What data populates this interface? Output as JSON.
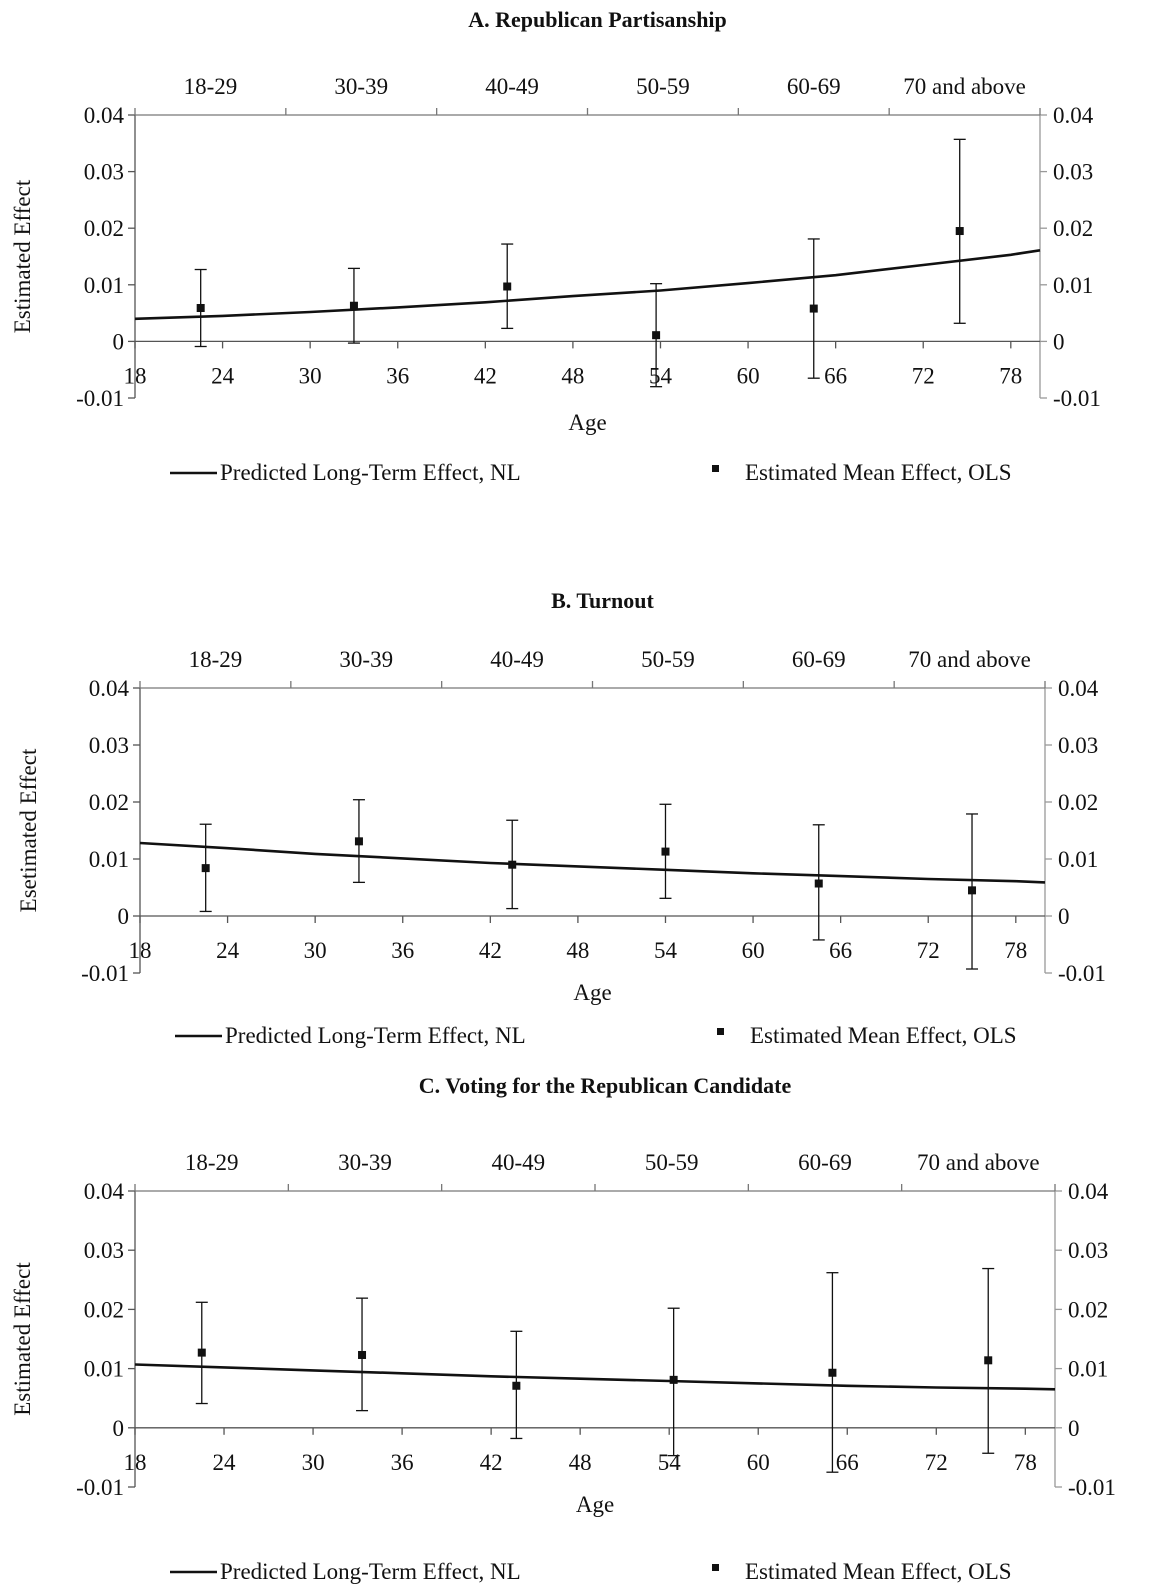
{
  "chart_data": [
    {
      "type": "line",
      "title": "A. Republican Partisanship",
      "ylabel": "Estimated Effect",
      "xlabel": "Age",
      "ylim": [
        -0.01,
        0.04
      ],
      "yticks": [
        "-0.01",
        "0",
        "0.01",
        "0.02",
        "0.03",
        "0.04"
      ],
      "xlim": [
        18,
        80
      ],
      "xticks": [
        "18",
        "24",
        "30",
        "36",
        "42",
        "48",
        "54",
        "60",
        "66",
        "72",
        "78"
      ],
      "top_categories": [
        "18-29",
        "30-39",
        "40-49",
        "50-59",
        "60-69",
        "70 and above"
      ],
      "grid": false,
      "legend_position": "bottom",
      "series": [
        {
          "name": "Predicted Long-Term Effect, NL",
          "kind": "line",
          "x": [
            18,
            24,
            30,
            36,
            42,
            48,
            54,
            60,
            66,
            72,
            78,
            80
          ],
          "y": [
            0.004,
            0.0045,
            0.0052,
            0.006,
            0.0069,
            0.008,
            0.009,
            0.0103,
            0.0117,
            0.0135,
            0.0153,
            0.0161
          ]
        },
        {
          "name": "Estimated Mean Effect, OLS",
          "kind": "points",
          "x": [
            22.5,
            33,
            43.5,
            53.7,
            64.5,
            74.5
          ],
          "y": [
            0.0059,
            0.0063,
            0.0097,
            0.0011,
            0.0058,
            0.0195
          ],
          "ci_low": [
            -0.0009,
            -0.0003,
            0.0023,
            -0.008,
            -0.0065,
            0.0032
          ],
          "ci_high": [
            0.0127,
            0.0129,
            0.0172,
            0.0102,
            0.0181,
            0.0357
          ]
        }
      ]
    },
    {
      "type": "line",
      "title": "B. Turnout",
      "ylabel": "Esetimated Effect",
      "xlabel": "Age",
      "ylim": [
        -0.01,
        0.04
      ],
      "yticks": [
        "-0.01",
        "0",
        "0.01",
        "0.02",
        "0.03",
        "0.04"
      ],
      "xlim": [
        18,
        80
      ],
      "xticks": [
        "18",
        "24",
        "30",
        "36",
        "42",
        "48",
        "54",
        "60",
        "66",
        "72",
        "78"
      ],
      "top_categories": [
        "18-29",
        "30-39",
        "40-49",
        "50-59",
        "60-69",
        "70 and above"
      ],
      "grid": false,
      "legend_position": "bottom",
      "series": [
        {
          "name": "Predicted Long-Term Effect, NL",
          "kind": "line",
          "x": [
            18,
            24,
            30,
            36,
            42,
            48,
            54,
            60,
            66,
            72,
            78,
            80
          ],
          "y": [
            0.0128,
            0.0119,
            0.0109,
            0.0101,
            0.0093,
            0.0087,
            0.0081,
            0.0075,
            0.007,
            0.0065,
            0.0061,
            0.0059
          ]
        },
        {
          "name": "Estimated Mean Effect, OLS",
          "kind": "points",
          "x": [
            22.5,
            33,
            43.5,
            54,
            64.5,
            75
          ],
          "y": [
            0.0084,
            0.0131,
            0.009,
            0.0113,
            0.0057,
            0.0045
          ],
          "ci_low": [
            0.0008,
            0.0059,
            0.0013,
            0.0031,
            -0.0042,
            -0.0093
          ],
          "ci_high": [
            0.0161,
            0.0204,
            0.0168,
            0.0196,
            0.016,
            0.0179
          ]
        }
      ]
    },
    {
      "type": "line",
      "title": "C. Voting for the Republican Candidate",
      "ylabel": "Estimated Effect",
      "xlabel": "Age",
      "ylim": [
        -0.01,
        0.04
      ],
      "yticks": [
        "-0.01",
        "0",
        "0.01",
        "0.02",
        "0.03",
        "0.04"
      ],
      "xlim": [
        18,
        80
      ],
      "xticks": [
        "18",
        "24",
        "30",
        "36",
        "42",
        "48",
        "54",
        "60",
        "66",
        "72",
        "78"
      ],
      "top_categories": [
        "18-29",
        "30-39",
        "40-49",
        "50-59",
        "60-69",
        "70 and above"
      ],
      "grid": false,
      "legend_position": "bottom",
      "series": [
        {
          "name": "Predicted Long-Term Effect, NL",
          "kind": "line",
          "x": [
            18,
            24,
            30,
            36,
            42,
            48,
            54,
            60,
            66,
            72,
            78,
            80
          ],
          "y": [
            0.0107,
            0.0102,
            0.0097,
            0.0092,
            0.0087,
            0.0083,
            0.0079,
            0.0075,
            0.0071,
            0.0068,
            0.0066,
            0.0065
          ]
        },
        {
          "name": "Estimated Mean Effect, OLS",
          "kind": "points",
          "x": [
            22.5,
            33.3,
            43.7,
            54.3,
            65,
            75.5
          ],
          "y": [
            0.0127,
            0.0123,
            0.0071,
            0.0081,
            0.0093,
            0.0114
          ],
          "ci_low": [
            0.0041,
            0.0029,
            -0.0018,
            -0.0047,
            -0.0075,
            -0.0043
          ],
          "ci_high": [
            0.0212,
            0.0219,
            0.0163,
            0.0202,
            0.0262,
            0.0269
          ]
        }
      ]
    }
  ]
}
